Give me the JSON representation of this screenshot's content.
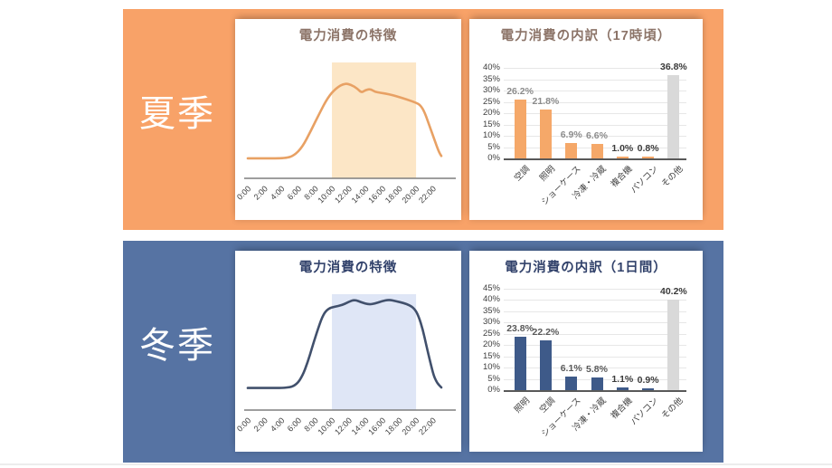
{
  "page": {
    "background": "#FFFFFF"
  },
  "sections": [
    {
      "season_label": "夏季",
      "band_color": "#F8A268",
      "title_color": "#8C7468"
    },
    {
      "season_label": "冬季",
      "band_color": "#5673A3",
      "title_color": "#32426B"
    }
  ],
  "chart_data": [
    {
      "type": "line",
      "season": "夏季",
      "title": "電力消費の特徴",
      "x_labels": [
        "0:00",
        "2:00",
        "4:00",
        "6:00",
        "8:00",
        "10:00",
        "12:00",
        "14:00",
        "16:00",
        "18:00",
        "20:00",
        "22:00"
      ],
      "x_range_hours": [
        0,
        23
      ],
      "highlight_hours": [
        10,
        20
      ],
      "highlight_color": "#FCE6C6",
      "line_color": "#E8A164",
      "amplitude": 105,
      "curve": [
        [
          0,
          0.21
        ],
        [
          2,
          0.21
        ],
        [
          4.5,
          0.21
        ],
        [
          5.5,
          0.24
        ],
        [
          6.5,
          0.33
        ],
        [
          7.5,
          0.5
        ],
        [
          8.5,
          0.68
        ],
        [
          9.5,
          0.85
        ],
        [
          10.5,
          0.95
        ],
        [
          11.5,
          1.0
        ],
        [
          12.3,
          0.985
        ],
        [
          13,
          0.945
        ],
        [
          13.5,
          0.9
        ],
        [
          14,
          0.93
        ],
        [
          14.6,
          0.94
        ],
        [
          15.1,
          0.91
        ],
        [
          15.8,
          0.9
        ],
        [
          16.8,
          0.885
        ],
        [
          17.8,
          0.86
        ],
        [
          18.9,
          0.83
        ],
        [
          20,
          0.795
        ],
        [
          20.5,
          0.77
        ],
        [
          21,
          0.7
        ],
        [
          21.6,
          0.55
        ],
        [
          22.2,
          0.4
        ],
        [
          22.7,
          0.28
        ],
        [
          23,
          0.235
        ]
      ]
    },
    {
      "type": "bar",
      "season": "夏季",
      "title": "電力消費の内訳（17時頃）",
      "categories": [
        "空調",
        "照明",
        "ショーケース",
        "冷凍・冷蔵",
        "複合機",
        "パソコン",
        "その他"
      ],
      "values": [
        26.2,
        21.8,
        6.9,
        6.6,
        1.0,
        0.8,
        36.8
      ],
      "value_labels": [
        "26.2%",
        "21.8%",
        "6.9%",
        "6.6%",
        "1.0%",
        "0.8%",
        "36.8%"
      ],
      "bar_colors": [
        "#F5A869",
        "#F5A869",
        "#F5A869",
        "#F5A869",
        "#F5A869",
        "#F5A869",
        "#D9D9D9"
      ],
      "value_label_colors": [
        "#8C8C8C",
        "#8C8C8C",
        "#8C8C8C",
        "#8C8C8C",
        "#3B3B3B",
        "#3B3B3B",
        "#3B3B3B"
      ],
      "ylim": [
        0,
        40
      ],
      "ytick_step": 5,
      "ytick_labels": [
        "0%",
        "5%",
        "10%",
        "15%",
        "20%",
        "25%",
        "30%",
        "35%",
        "40%"
      ],
      "grid": true,
      "xlabel": "",
      "ylabel": ""
    },
    {
      "type": "line",
      "season": "冬季",
      "title": "電力消費の特徴",
      "x_labels": [
        "0:00",
        "2:00",
        "4:00",
        "6:00",
        "8:00",
        "10:00",
        "12:00",
        "14:00",
        "16:00",
        "18:00",
        "20:00",
        "22:00"
      ],
      "x_range_hours": [
        0,
        23
      ],
      "highlight_hours": [
        10,
        20
      ],
      "highlight_color": "#DFE6F6",
      "line_color": "#41506C",
      "amplitude": 122,
      "curve": [
        [
          0,
          0.2
        ],
        [
          2,
          0.2
        ],
        [
          4.8,
          0.2
        ],
        [
          5.8,
          0.23
        ],
        [
          6.5,
          0.31
        ],
        [
          7.1,
          0.43
        ],
        [
          7.7,
          0.58
        ],
        [
          8.4,
          0.75
        ],
        [
          9,
          0.87
        ],
        [
          9.6,
          0.92
        ],
        [
          10.3,
          0.935
        ],
        [
          11.2,
          0.95
        ],
        [
          12,
          0.98
        ],
        [
          12.7,
          1.0
        ],
        [
          13.5,
          0.975
        ],
        [
          14.4,
          0.955
        ],
        [
          15.1,
          0.965
        ],
        [
          15.9,
          0.985
        ],
        [
          16.8,
          1.0
        ],
        [
          17.6,
          0.985
        ],
        [
          18.5,
          0.97
        ],
        [
          19.2,
          0.95
        ],
        [
          19.8,
          0.92
        ],
        [
          20.3,
          0.85
        ],
        [
          20.8,
          0.73
        ],
        [
          21.2,
          0.59
        ],
        [
          21.7,
          0.43
        ],
        [
          22.1,
          0.31
        ],
        [
          22.5,
          0.245
        ],
        [
          23,
          0.205
        ]
      ]
    },
    {
      "type": "bar",
      "season": "冬季",
      "title": "電力消費の内訳（1日間）",
      "categories": [
        "照明",
        "空調",
        "ショーケース",
        "冷凍・冷蔵",
        "複合機",
        "パソコン",
        "その他"
      ],
      "values": [
        23.8,
        22.2,
        6.1,
        5.8,
        1.1,
        0.9,
        40.2
      ],
      "value_labels": [
        "23.8%",
        "22.2%",
        "6.1%",
        "5.8%",
        "1.1%",
        "0.9%",
        "40.2%"
      ],
      "bar_colors": [
        "#3E5A89",
        "#3E5A89",
        "#3E5A89",
        "#3E5A89",
        "#3E5A89",
        "#3E5A89",
        "#D9D9D9"
      ],
      "value_label_colors": [
        "#595959",
        "#595959",
        "#595959",
        "#595959",
        "#3B3B3B",
        "#3B3B3B",
        "#3B3B3B"
      ],
      "ylim": [
        0,
        45
      ],
      "ytick_step": 5,
      "ytick_labels": [
        "0%",
        "5%",
        "10%",
        "15%",
        "20%",
        "25%",
        "30%",
        "35%",
        "40%",
        "45%"
      ],
      "grid": true,
      "xlabel": "",
      "ylabel": ""
    }
  ]
}
